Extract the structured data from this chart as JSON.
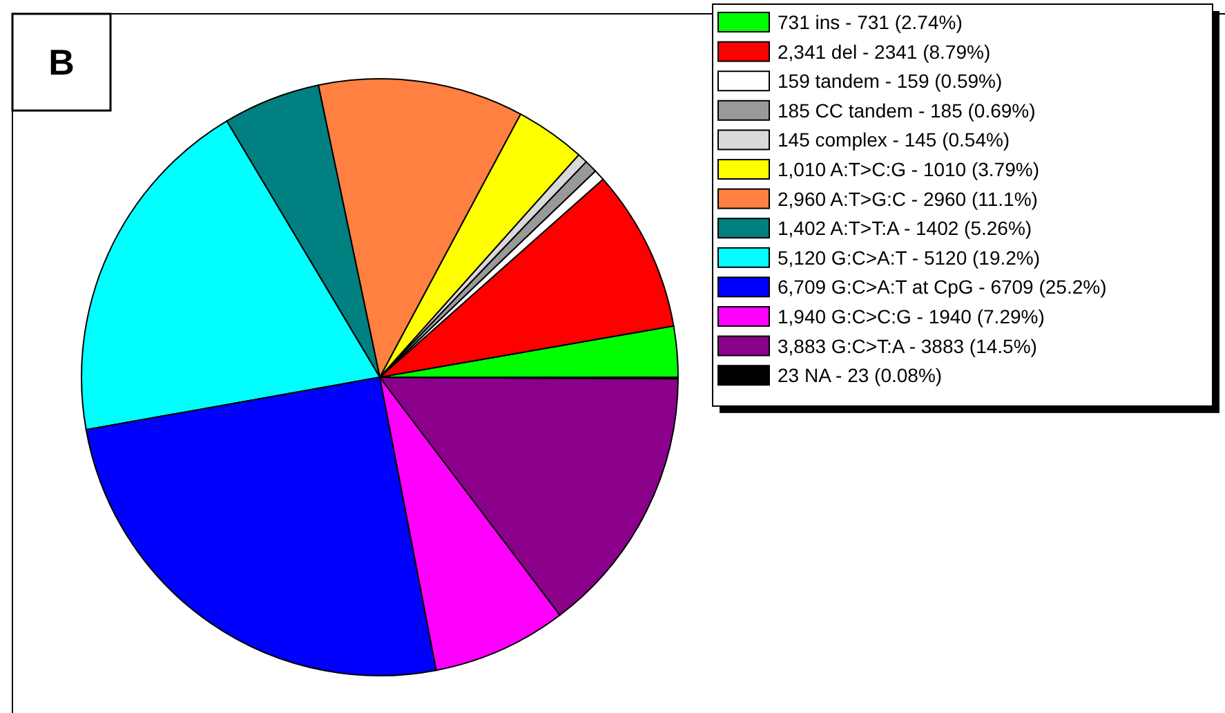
{
  "chart_data": {
    "type": "pie",
    "title": "B",
    "categories": [
      "731 ins - 731 (2.74%)",
      "2,341 del - 2341 (8.79%)",
      "159 tandem - 159 (0.59%)",
      "185 CC tandem - 185 (0.69%)",
      "145 complex - 145 (0.54%)",
      "1,010 A:T>C:G - 1010 (3.79%)",
      "2,960 A:T>G:C - 2960 (11.1%)",
      "1,402 A:T>T:A - 1402 (5.26%)",
      "5,120 G:C>A:T - 5120 (19.2%)",
      "6,709 G:C>A:T at CpG - 6709 (25.2%)",
      "1,940 G:C>C:G - 1940 (7.29%)",
      "3,883 G:C>T:A - 3883 (14.5%)",
      "23 NA - 23 (0.08%)"
    ],
    "values": [
      731,
      2341,
      159,
      185,
      145,
      1010,
      2960,
      1402,
      5120,
      6709,
      1940,
      3883,
      23
    ],
    "colors": [
      "#00ff00",
      "#ff0000",
      "#ffffff",
      "#999999",
      "#d9d9d9",
      "#ffff00",
      "#ff8040",
      "#008080",
      "#00ffff",
      "#0000ff",
      "#ff00ff",
      "#8b008b",
      "#000000"
    ],
    "legend": "top right"
  }
}
